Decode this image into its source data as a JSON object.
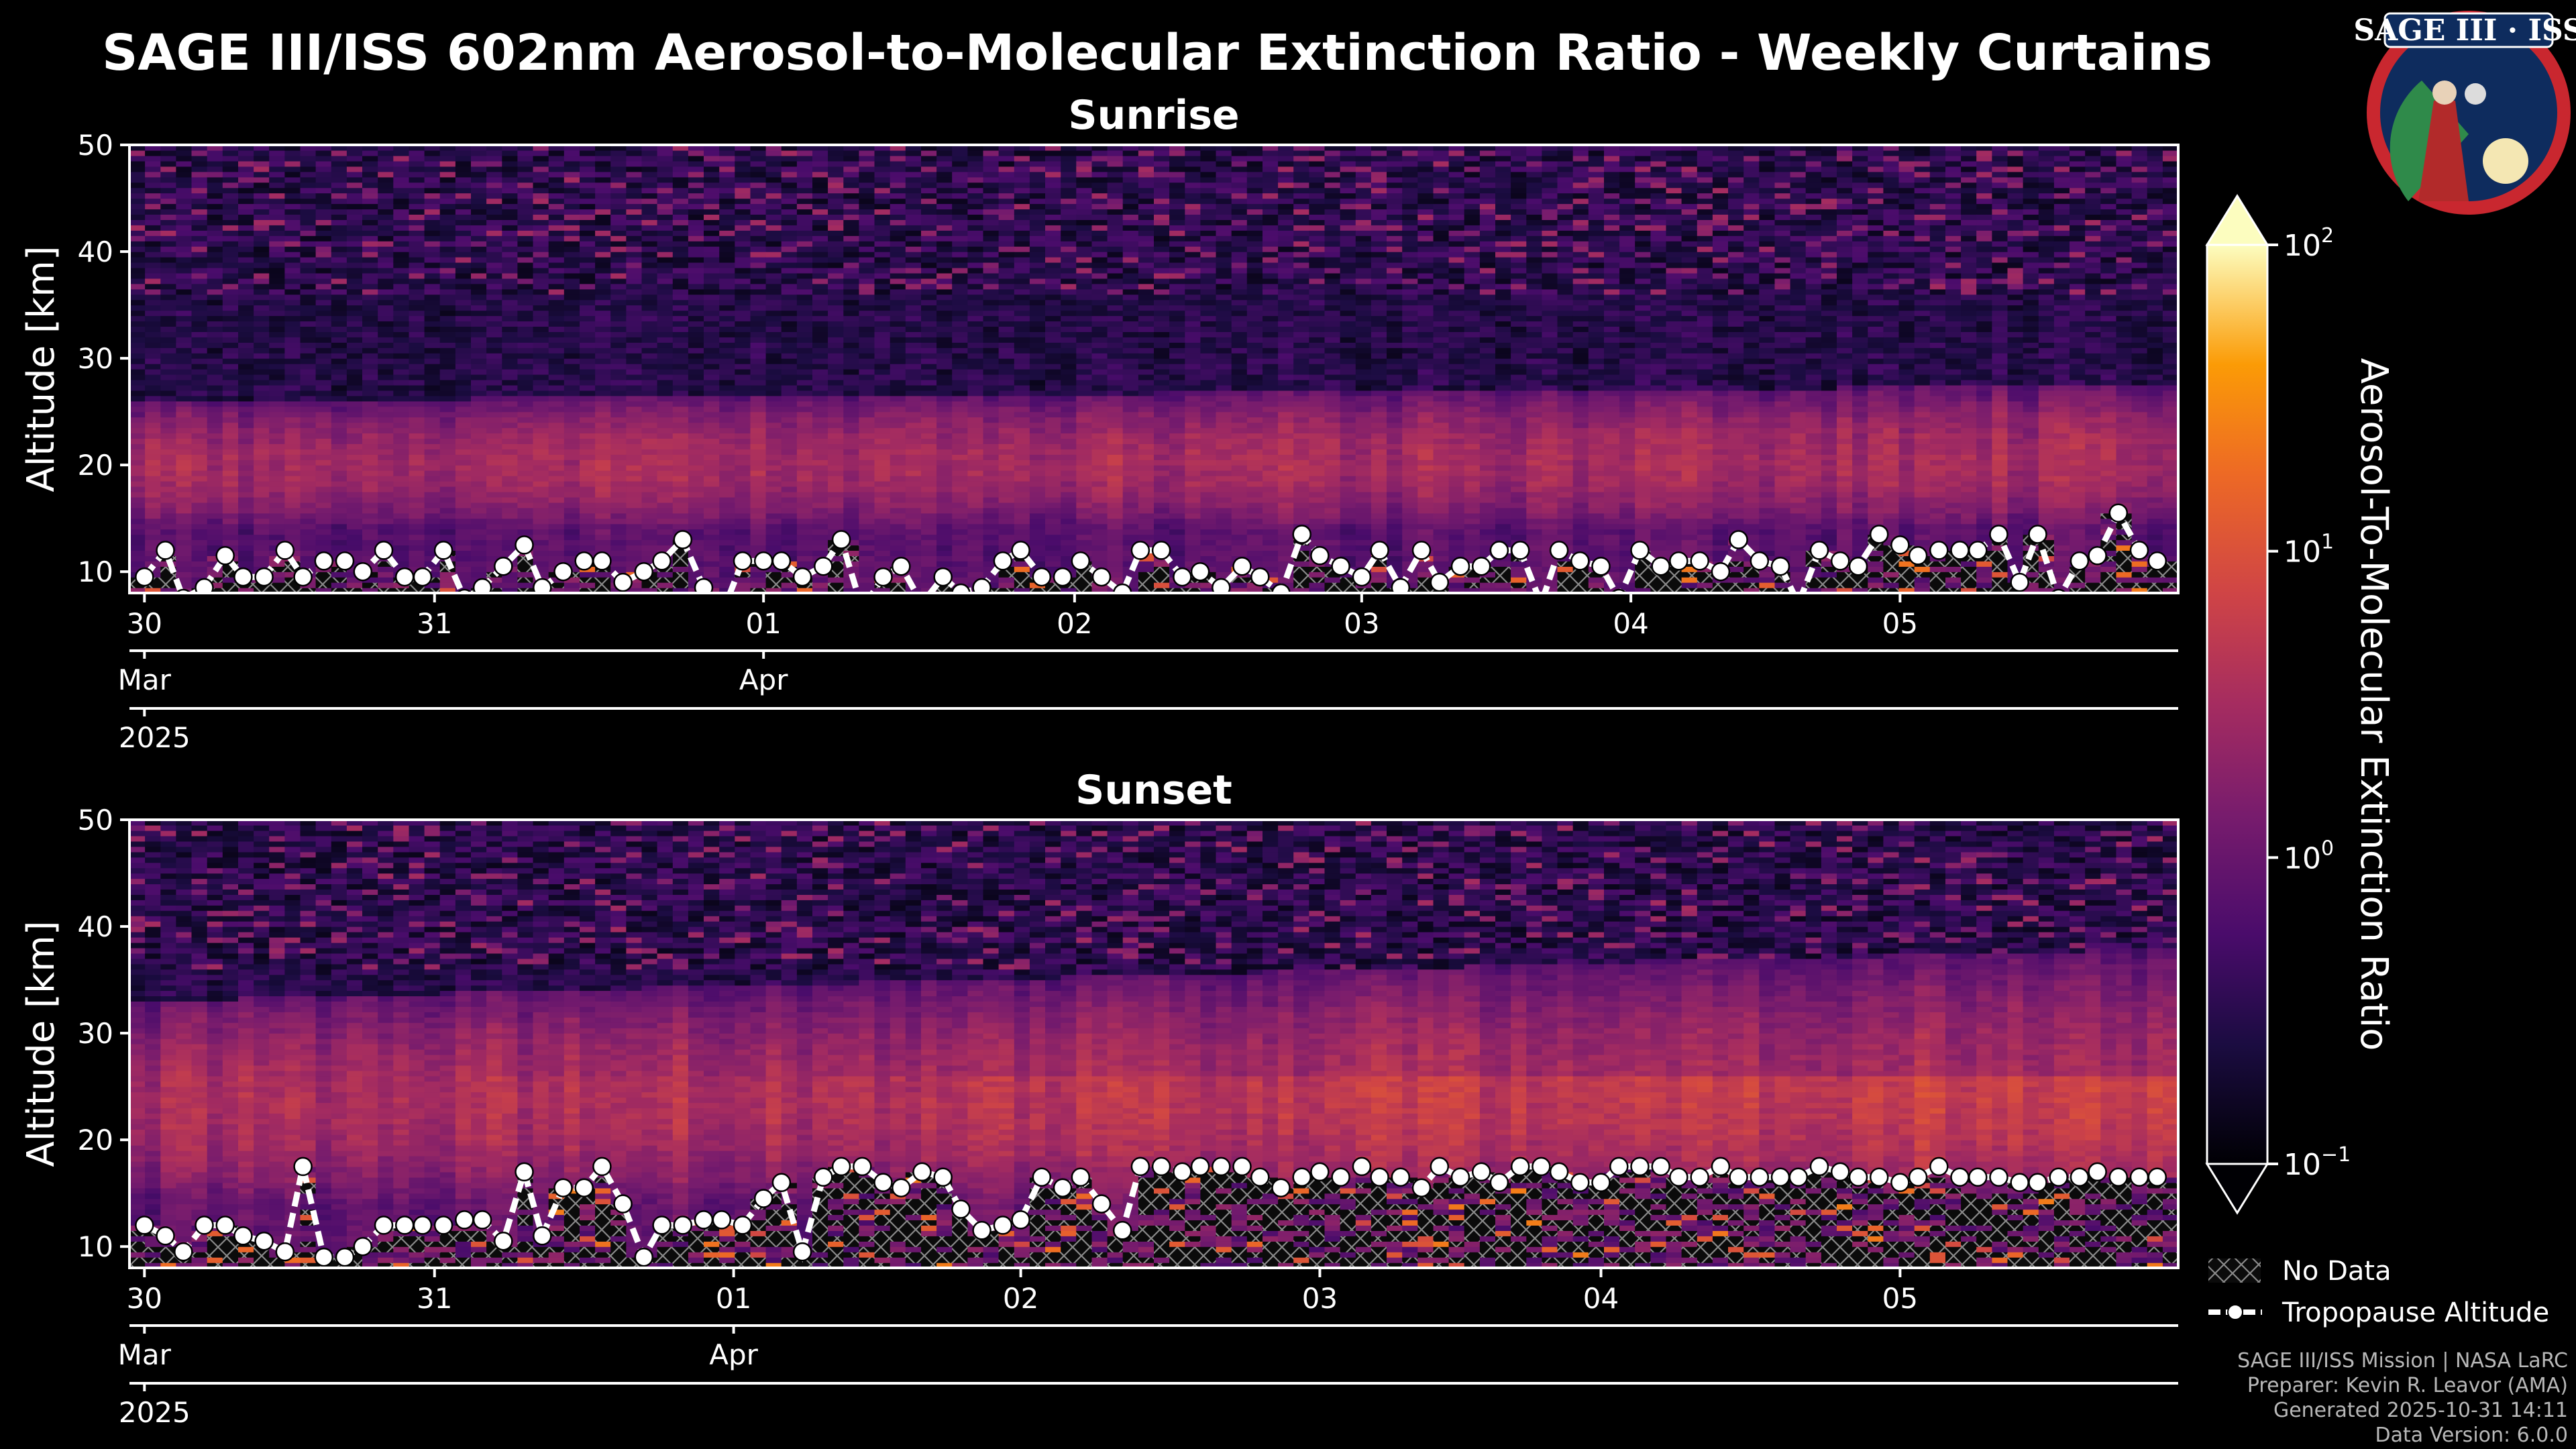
{
  "title": "SAGE III/ISS 602nm Aerosol-to-Molecular Extinction Ratio - Weekly Curtains",
  "logo": {
    "text": "SAGE III · ISS"
  },
  "colorbar": {
    "label": "Aerosol-To-Molecular Extinction Ratio",
    "ticks": [
      {
        "base": "10",
        "exp": "2",
        "value": 100
      },
      {
        "base": "10",
        "exp": "1",
        "value": 10
      },
      {
        "base": "10",
        "exp": "0",
        "value": 1
      },
      {
        "base": "10",
        "exp": "−1",
        "value": 0.1
      }
    ],
    "colors": {
      "low": "#000004",
      "mid": "#b5367a",
      "high": "#fcfdbf"
    }
  },
  "legend": {
    "no_data": "No Data",
    "tropopause": "Tropopause Altitude"
  },
  "credits": [
    "SAGE III/ISS Mission | NASA LaRC",
    "Preparer: Kevin R. Leavor (AMA)",
    "Generated 2025-10-31 14:11",
    "Data Version: 6.0.0"
  ],
  "chart_data": [
    {
      "type": "heatmap",
      "title": "Sunrise",
      "ylabel": "Altitude [km]",
      "ylim": [
        8,
        50
      ],
      "yticks": [
        "10",
        "20",
        "30",
        "40",
        "50"
      ],
      "xlim_days": [
        -0.05,
        6.8
      ],
      "xticks_day": [
        {
          "label": "30",
          "day": 0
        },
        {
          "label": "31",
          "day": 0.97
        },
        {
          "label": "01",
          "day": 2.07
        },
        {
          "label": "02",
          "day": 3.11
        },
        {
          "label": "03",
          "day": 4.07
        },
        {
          "label": "04",
          "day": 4.97
        },
        {
          "label": "05",
          "day": 5.87
        }
      ],
      "xticks_month": [
        {
          "label": "Mar",
          "day": 0
        },
        {
          "label": "Apr",
          "day": 2.07
        }
      ],
      "xtick_year": {
        "label": "2025",
        "day": 0
      },
      "aerosol_layer_km": [
        14,
        26
      ],
      "tropopause": {
        "day": [
          0,
          0.07,
          0.13,
          0.2,
          0.27,
          0.33,
          0.4,
          0.47,
          0.53,
          0.6,
          0.67,
          0.73,
          0.8,
          0.87,
          0.93,
          1,
          1.07,
          1.13,
          1.2,
          1.27,
          1.33,
          1.4,
          1.47,
          1.53,
          1.6,
          1.67,
          1.73,
          1.8,
          1.87,
          1.93,
          2,
          2.07,
          2.13,
          2.2,
          2.27,
          2.33,
          2.4,
          2.47,
          2.53,
          2.6,
          2.67,
          2.73,
          2.8,
          2.87,
          2.93,
          3,
          3.07,
          3.13,
          3.2,
          3.27,
          3.33,
          3.4,
          3.47,
          3.53,
          3.6,
          3.67,
          3.73,
          3.8,
          3.87,
          3.93,
          4,
          4.07,
          4.13,
          4.2,
          4.27,
          4.33,
          4.4,
          4.47,
          4.53,
          4.6,
          4.67,
          4.73,
          4.8,
          4.87,
          4.93,
          5,
          5.07,
          5.13,
          5.2,
          5.27,
          5.33,
          5.4,
          5.47,
          5.53,
          5.6,
          5.67,
          5.73,
          5.8,
          5.87,
          5.93,
          6,
          6.07,
          6.13,
          6.2,
          6.27,
          6.33,
          6.4,
          6.47,
          6.53,
          6.6,
          6.67,
          6.73
        ],
        "km": [
          9.5,
          12,
          7.5,
          8.5,
          11.5,
          9.5,
          9.5,
          12,
          9.5,
          11,
          11,
          10,
          12,
          9.5,
          9.5,
          12,
          7.5,
          8.5,
          10.5,
          12.5,
          8.5,
          10,
          11,
          11,
          9,
          10,
          11,
          13,
          8.5,
          6,
          11,
          11,
          11,
          9.5,
          10.5,
          13,
          6.5,
          9.5,
          10.5,
          7,
          9.5,
          8,
          8.5,
          11,
          12,
          9.5,
          9.5,
          11,
          9.5,
          8,
          12,
          12,
          9.5,
          10,
          8.5,
          10.5,
          9.5,
          8,
          13.5,
          11.5,
          10.5,
          9.5,
          12,
          8.5,
          12,
          9,
          10.5,
          10.5,
          12,
          12,
          7,
          12,
          11,
          10.5,
          7.5,
          12,
          10.5,
          11,
          11,
          10,
          13,
          11,
          10.5,
          7,
          12,
          11,
          10.5,
          13.5,
          12.5,
          11.5,
          12,
          12,
          12,
          13.5,
          9,
          13.5,
          7.5,
          11,
          11.5,
          15.5,
          12,
          11,
          15.5
        ]
      }
    },
    {
      "type": "heatmap",
      "title": "Sunset",
      "ylabel": "Altitude [km]",
      "ylim": [
        8,
        50
      ],
      "yticks": [
        "10",
        "20",
        "30",
        "40",
        "50"
      ],
      "xlim_days": [
        -0.05,
        6.8
      ],
      "xticks_day": [
        {
          "label": "30",
          "day": 0
        },
        {
          "label": "31",
          "day": 0.97
        },
        {
          "label": "01",
          "day": 1.97
        },
        {
          "label": "02",
          "day": 2.93
        },
        {
          "label": "03",
          "day": 3.93
        },
        {
          "label": "04",
          "day": 4.87
        },
        {
          "label": "05",
          "day": 5.87
        }
      ],
      "xticks_month": [
        {
          "label": "Mar",
          "day": 0
        },
        {
          "label": "Apr",
          "day": 1.97
        }
      ],
      "xtick_year": {
        "label": "2025",
        "day": 0
      },
      "aerosol_layer_km": [
        14,
        33
      ],
      "tropopause": {
        "day": [
          0,
          0.07,
          0.13,
          0.2,
          0.27,
          0.33,
          0.4,
          0.47,
          0.53,
          0.6,
          0.67,
          0.73,
          0.8,
          0.87,
          0.93,
          1,
          1.07,
          1.13,
          1.2,
          1.27,
          1.33,
          1.4,
          1.47,
          1.53,
          1.6,
          1.67,
          1.73,
          1.8,
          1.87,
          1.93,
          2,
          2.07,
          2.13,
          2.2,
          2.27,
          2.33,
          2.4,
          2.47,
          2.53,
          2.6,
          2.67,
          2.73,
          2.8,
          2.87,
          2.93,
          3,
          3.07,
          3.13,
          3.2,
          3.27,
          3.33,
          3.4,
          3.47,
          3.53,
          3.6,
          3.67,
          3.73,
          3.8,
          3.87,
          3.93,
          4,
          4.07,
          4.13,
          4.2,
          4.27,
          4.33,
          4.4,
          4.47,
          4.53,
          4.6,
          4.67,
          4.73,
          4.8,
          4.87,
          4.93,
          5,
          5.07,
          5.13,
          5.2,
          5.27,
          5.33,
          5.4,
          5.47,
          5.53,
          5.6,
          5.67,
          5.73,
          5.8,
          5.87,
          5.93,
          6,
          6.07,
          6.13,
          6.2,
          6.27,
          6.33,
          6.4,
          6.47,
          6.53,
          6.6,
          6.67,
          6.73
        ],
        "km": [
          12,
          11,
          9.5,
          12,
          12,
          11,
          10.5,
          9.5,
          17.5,
          9,
          9,
          10,
          12,
          12,
          12,
          12,
          12.5,
          12.5,
          10.5,
          17,
          11,
          15.5,
          15.5,
          17.5,
          14,
          9,
          12,
          12,
          12.5,
          12.5,
          12,
          14.5,
          16,
          9.5,
          16.5,
          17.5,
          17.5,
          16,
          15.5,
          17,
          16.5,
          13.5,
          11.5,
          12,
          12.5,
          16.5,
          15.5,
          16.5,
          14,
          11.5,
          17.5,
          17.5,
          17,
          17.5,
          17.5,
          17.5,
          16.5,
          15.5,
          16.5,
          17,
          16.5,
          17.5,
          16.5,
          16.5,
          15.5,
          17.5,
          16.5,
          17,
          16,
          17.5,
          17.5,
          17,
          16,
          16,
          17.5,
          17.5,
          17.5,
          16.5,
          16.5,
          17.5,
          16.5,
          16.5,
          16.5,
          16.5,
          17.5,
          17,
          16.5,
          16.5,
          16,
          16.5,
          17.5,
          16.5,
          16.5,
          16.5,
          16,
          16,
          16.5,
          16.5,
          17,
          16.5,
          16.5,
          16.5,
          16.5
        ]
      }
    }
  ]
}
